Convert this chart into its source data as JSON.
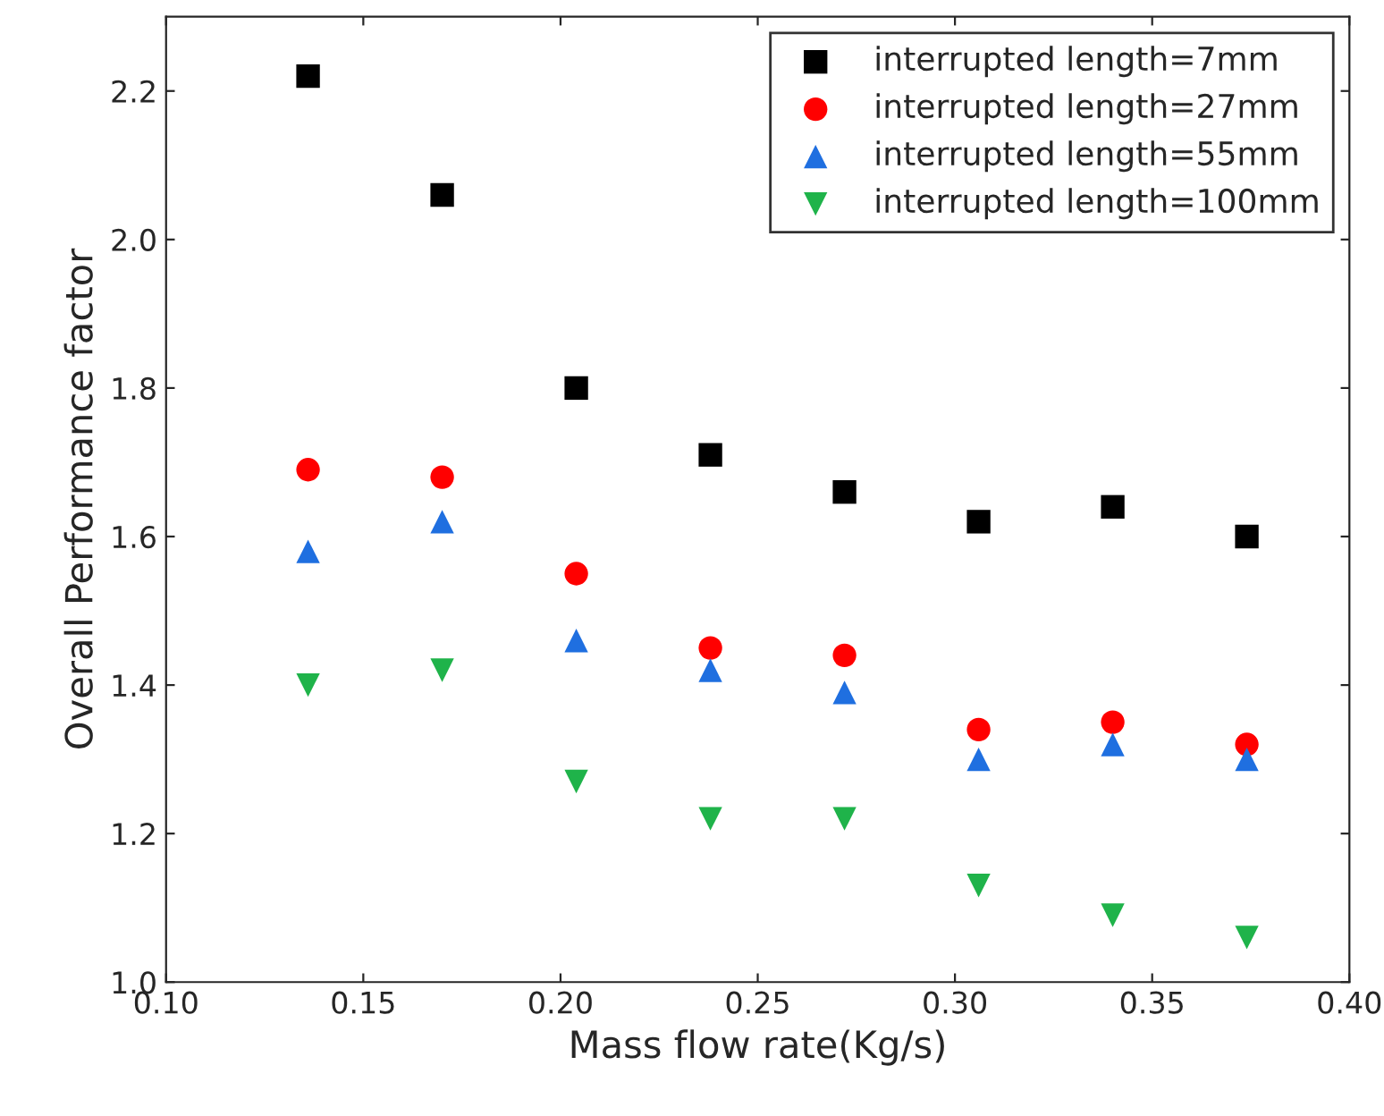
{
  "chart_data": {
    "type": "scatter",
    "xlabel": "Mass flow rate(Kg/s)",
    "ylabel": "Overall Performance factor",
    "xlim": [
      0.1,
      0.4
    ],
    "xticks": [
      {
        "value": 0.1,
        "label": "0.10"
      },
      {
        "value": 0.15,
        "label": "0.15"
      },
      {
        "value": 0.2,
        "label": "0.20"
      },
      {
        "value": 0.25,
        "label": "0.25"
      },
      {
        "value": 0.3,
        "label": "0.30"
      },
      {
        "value": 0.35,
        "label": "0.35"
      },
      {
        "value": 0.4,
        "label": "0.40"
      }
    ],
    "ylim": [
      1.0,
      2.3
    ],
    "yticks": [
      {
        "value": 1.0,
        "label": "1.0"
      },
      {
        "value": 1.2,
        "label": "1.2"
      },
      {
        "value": 1.4,
        "label": "1.4"
      },
      {
        "value": 1.6,
        "label": "1.6"
      },
      {
        "value": 1.8,
        "label": "1.8"
      },
      {
        "value": 2.0,
        "label": "2.0"
      },
      {
        "value": 2.2,
        "label": "2.2"
      }
    ],
    "x": [
      0.136,
      0.17,
      0.204,
      0.238,
      0.272,
      0.306,
      0.34,
      0.374
    ],
    "grid": false,
    "legend": "top right",
    "series": [
      {
        "name": "interrupted length=7mm",
        "color": "#000000",
        "marker": "square",
        "values": [
          2.22,
          2.06,
          1.8,
          1.71,
          1.66,
          1.62,
          1.64,
          1.6
        ]
      },
      {
        "name": "interrupted length=27mm",
        "color": "#ff0000",
        "marker": "circle",
        "values": [
          1.69,
          1.68,
          1.55,
          1.45,
          1.44,
          1.34,
          1.35,
          1.32
        ]
      },
      {
        "name": "interrupted length=55mm",
        "color": "#1f6fe0",
        "marker": "triangle",
        "values": [
          1.58,
          1.62,
          1.46,
          1.42,
          1.39,
          1.3,
          1.32,
          1.3
        ]
      },
      {
        "name": "interrupted length=100mm",
        "color": "#1fb34a",
        "marker": "triangle_down",
        "values": [
          1.4,
          1.42,
          1.27,
          1.22,
          1.22,
          1.13,
          1.09,
          1.06
        ]
      }
    ]
  }
}
